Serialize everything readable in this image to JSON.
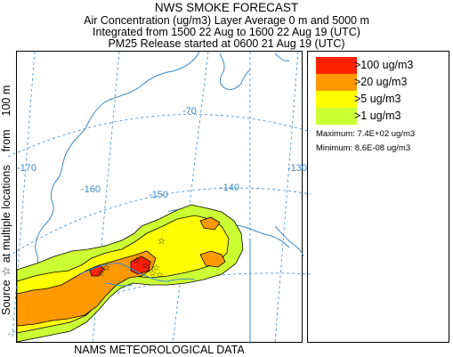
{
  "header": {
    "title": "NWS SMOKE FORECAST",
    "line1": "Air Concentration (ug/m3) Layer Average    0 m and  5000 m",
    "line2": "Integrated from 1500 22 Aug to 1600 22 Aug 19 (UTC)",
    "line3": "PM25 Release started at 0600 21 Aug 19 (UTC)"
  },
  "side_label": {
    "part1": "Source",
    "star": "☆",
    "part2": "at multiple locations",
    "part3": "from",
    "part4": "100 m"
  },
  "footer": {
    "data_source": "NAMS METEOROLOGICAL DATA"
  },
  "map": {
    "longitude_labels": [
      "-170",
      "-160",
      "-150",
      "-140",
      "-130",
      "-70"
    ],
    "colors": {
      "coast": "#3a8ac8",
      "grid": "#3a8ac8",
      "outline": "#000000"
    }
  },
  "legend": {
    "items": [
      {
        "label": ">100 ug/m3",
        "color": "#ff2200"
      },
      {
        "label": ">20 ug/m3",
        "color": "#ff9900"
      },
      {
        "label": ">5 ug/m3",
        "color": "#ffff00"
      },
      {
        "label": ">1 ug/m3",
        "color": "#ccff33"
      }
    ],
    "maximum": "Maximum: 7.4E+02 ug/m3",
    "minimum": "Minimum: 8.6E-08 ug/m3"
  }
}
